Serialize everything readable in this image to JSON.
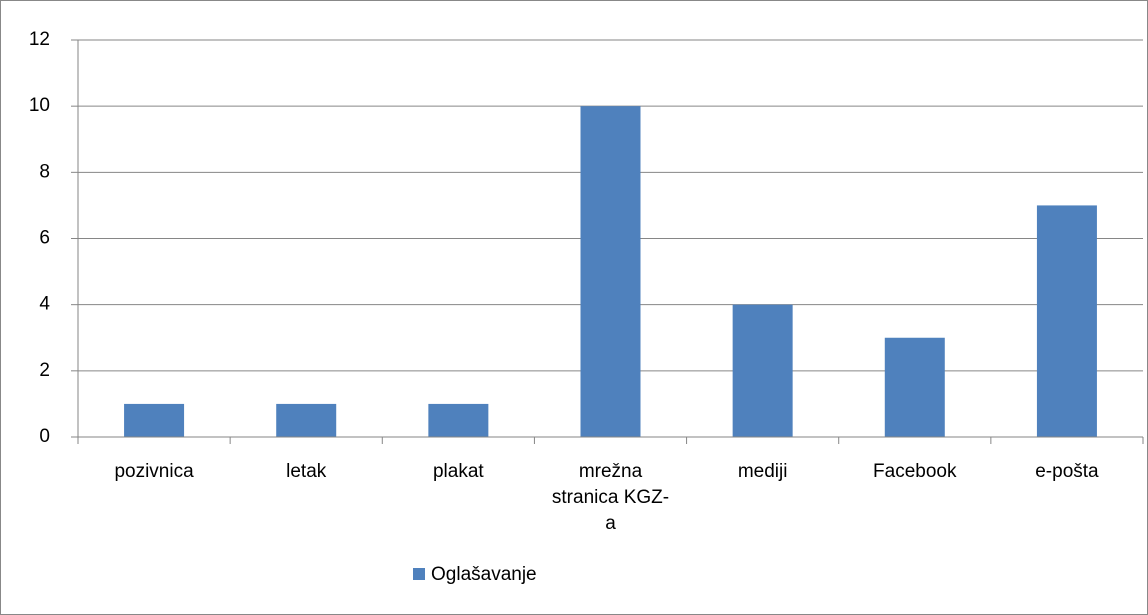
{
  "chart_data": {
    "type": "bar",
    "categories": [
      "pozivnica",
      "letak",
      "plakat",
      "mrežna stranica KGZ-a",
      "mediji",
      "Facebook",
      "e-pošta"
    ],
    "series": [
      {
        "name": "Oglašavanje",
        "color": "#4f81bd",
        "values": [
          1,
          1,
          1,
          10,
          4,
          3,
          7
        ]
      }
    ],
    "ylim": [
      0,
      12
    ],
    "yticks": [
      0,
      2,
      4,
      6,
      8,
      10,
      12
    ],
    "grid": true,
    "legend": "bottom"
  }
}
